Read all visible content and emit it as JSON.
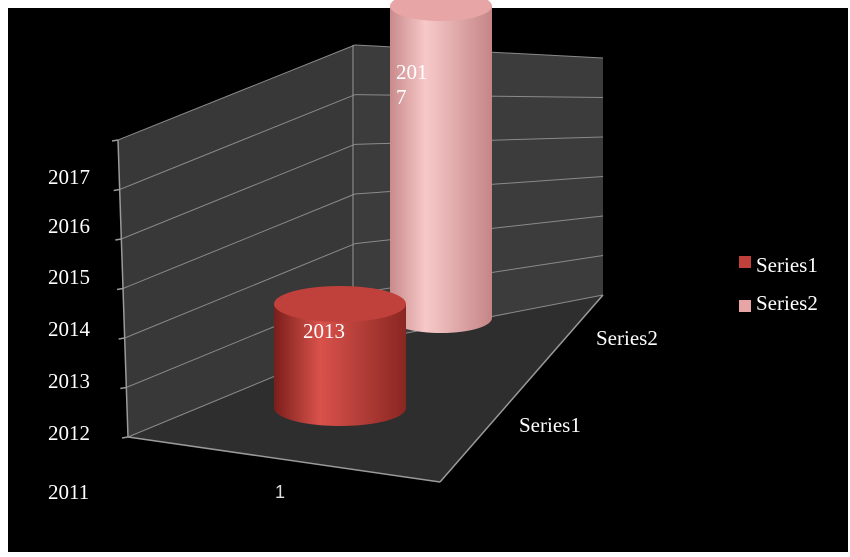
{
  "chart_data": {
    "type": "bar",
    "style": "3d-cylinder",
    "categories": [
      "1"
    ],
    "series": [
      {
        "name": "Series1",
        "values": [
          2013
        ],
        "color": "#c0413c",
        "data_label": "2013"
      },
      {
        "name": "Series2",
        "values": [
          2017
        ],
        "color": "#e7a5a6",
        "data_label_lines": [
          "201",
          "7"
        ]
      }
    ],
    "y_ticks": [
      "2011",
      "2012",
      "2013",
      "2014",
      "2015",
      "2016",
      "2017"
    ],
    "ylim": [
      2011,
      2017
    ],
    "series_axis_labels": [
      "Series1",
      "Series2"
    ],
    "legend": [
      "Series1",
      "Series2"
    ],
    "legend_position": "right",
    "grid": true,
    "colors": {
      "background": "#000000",
      "walls": "#3a3a3a",
      "floor": "#303030",
      "grid": "#8a8a8a",
      "axis": "#9a9a9a"
    }
  }
}
